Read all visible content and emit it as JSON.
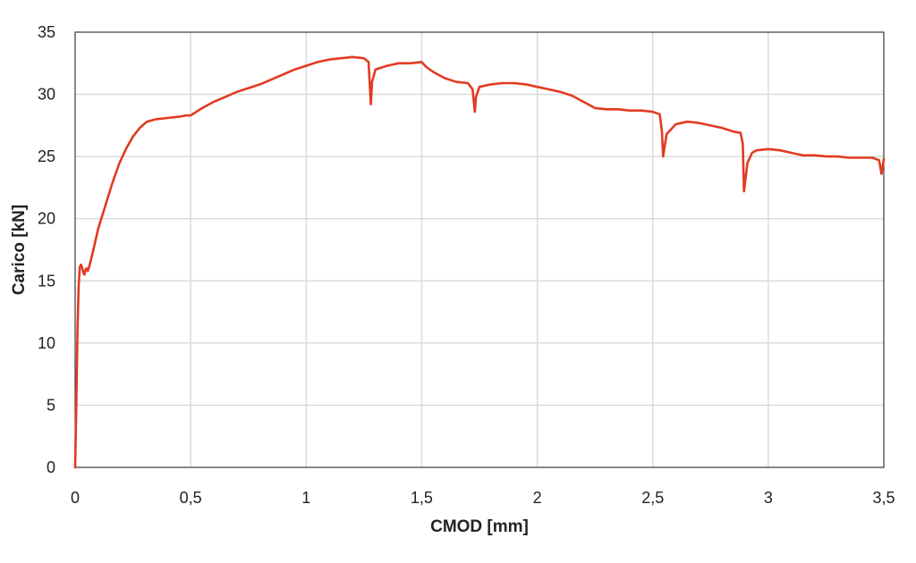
{
  "chart_data": {
    "type": "line",
    "title": "",
    "xlabel": "CMOD [mm]",
    "ylabel": "Carico [kN]",
    "xlim": [
      0,
      3.5
    ],
    "ylim": [
      0,
      35
    ],
    "x_ticks": [
      "0",
      "0,5",
      "1",
      "1,5",
      "2",
      "2,5",
      "3",
      "3,5"
    ],
    "y_ticks": [
      "0",
      "5",
      "10",
      "15",
      "20",
      "25",
      "30",
      "35"
    ],
    "grid": true,
    "legend": "none",
    "colors": {
      "series": "#e23a22",
      "grid": "#d9d9d9",
      "frame": "#3a3a3a",
      "text": "#222222"
    },
    "series": [
      {
        "x": [
          0,
          0.005,
          0.01,
          0.015,
          0.02,
          0.025,
          0.03,
          0.035,
          0.04,
          0.045,
          0.05,
          0.055,
          0.06,
          0.07,
          0.08,
          0.1,
          0.13,
          0.16,
          0.19,
          0.22,
          0.25,
          0.28,
          0.31,
          0.35,
          0.4,
          0.45,
          0.48,
          0.5,
          0.55,
          0.6,
          0.65,
          0.7,
          0.75,
          0.8,
          0.85,
          0.9,
          0.95,
          1.0,
          1.05,
          1.1,
          1.15,
          1.2,
          1.25,
          1.27,
          1.28,
          1.285,
          1.3,
          1.35,
          1.4,
          1.45,
          1.5,
          1.52,
          1.55,
          1.6,
          1.65,
          1.7,
          1.72,
          1.73,
          1.735,
          1.75,
          1.8,
          1.85,
          1.9,
          1.95,
          2.0,
          2.05,
          2.1,
          2.15,
          2.2,
          2.25,
          2.3,
          2.35,
          2.4,
          2.45,
          2.5,
          2.53,
          2.54,
          2.545,
          2.56,
          2.6,
          2.65,
          2.7,
          2.75,
          2.8,
          2.85,
          2.88,
          2.89,
          2.895,
          2.91,
          2.93,
          2.95,
          3.0,
          3.05,
          3.1,
          3.15,
          3.2,
          3.25,
          3.3,
          3.35,
          3.4,
          3.45,
          3.48,
          3.49,
          3.5
        ],
        "y": [
          0,
          5,
          11,
          14.5,
          16.1,
          16.3,
          16.1,
          15.7,
          15.5,
          15.9,
          16.0,
          15.8,
          16.1,
          16.8,
          17.6,
          19.2,
          21.0,
          22.8,
          24.4,
          25.6,
          26.6,
          27.3,
          27.8,
          28.0,
          28.1,
          28.2,
          28.3,
          28.3,
          28.9,
          29.4,
          29.8,
          30.2,
          30.5,
          30.8,
          31.2,
          31.6,
          32.0,
          32.3,
          32.6,
          32.8,
          32.9,
          33.0,
          32.9,
          32.6,
          29.2,
          31.0,
          32.0,
          32.3,
          32.5,
          32.5,
          32.6,
          32.2,
          31.8,
          31.3,
          31.0,
          30.9,
          30.4,
          28.6,
          29.8,
          30.6,
          30.8,
          30.9,
          30.9,
          30.8,
          30.6,
          30.4,
          30.2,
          29.9,
          29.4,
          28.9,
          28.8,
          28.8,
          28.7,
          28.7,
          28.6,
          28.4,
          27.0,
          25.0,
          26.8,
          27.6,
          27.8,
          27.7,
          27.5,
          27.3,
          27.0,
          26.9,
          26.0,
          22.2,
          24.5,
          25.3,
          25.5,
          25.6,
          25.5,
          25.3,
          25.1,
          25.1,
          25.0,
          25.0,
          24.9,
          24.9,
          24.9,
          24.7,
          23.6,
          24.8
        ]
      }
    ]
  }
}
